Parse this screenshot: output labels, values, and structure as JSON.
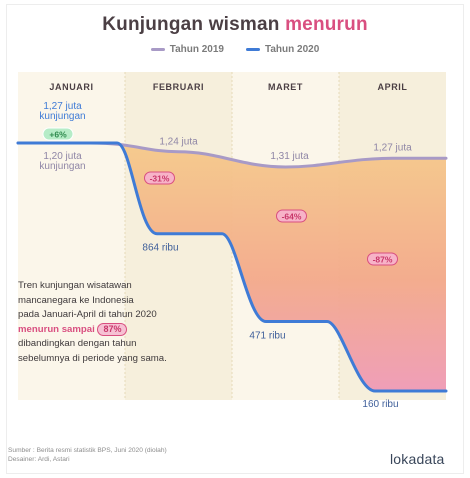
{
  "header": {
    "title_main": "Kunjungan wisman",
    "title_accent": "menurun"
  },
  "legend": [
    {
      "label": "Tahun 2019",
      "color": "#a89ac6"
    },
    {
      "label": "Tahun 2020",
      "color": "#3f7bd6"
    }
  ],
  "chart_data": {
    "type": "area",
    "categories": [
      "JANUARI",
      "FEBRUARI",
      "MARET",
      "APRIL"
    ],
    "series": [
      {
        "name": "Tahun 2019",
        "values": [
          1200000,
          1240000,
          1310000,
          1270000
        ],
        "labels": [
          "1,20 juta\nkunjungan",
          "1,24 juta",
          "1,31 juta",
          "1,27 juta"
        ],
        "color": "#a89ac6"
      },
      {
        "name": "Tahun 2020",
        "values": [
          1270000,
          864000,
          471000,
          160000
        ],
        "labels": [
          "1,27 juta\nkunjungan",
          "864 ribu",
          "471 ribu",
          "160 ribu"
        ],
        "color": "#3f7bd6"
      }
    ],
    "changes": [
      "+6%",
      "-31%",
      "-64%",
      "-87%"
    ]
  },
  "note": {
    "line1": "Tren kunjungan wisatawan",
    "line2": "mancanegara ke Indonesia",
    "line3": "pada Januari-April di tahun 2020",
    "highlight": "menurun sampai",
    "badge": "87%",
    "line4": "dibandingkan dengan tahun",
    "line5": "sebelumnya di periode yang sama."
  },
  "footer": {
    "source": "Sumber : Berita resmi statistik BPS, Juni 2020 (diolah)",
    "designer": "Desainer: Ardi, Astari",
    "brand": "lokadata"
  },
  "colors": {
    "title": "#4b3f44",
    "accent": "#d94f80",
    "col_bg": "#f6efdc",
    "green": "#63c98a"
  }
}
